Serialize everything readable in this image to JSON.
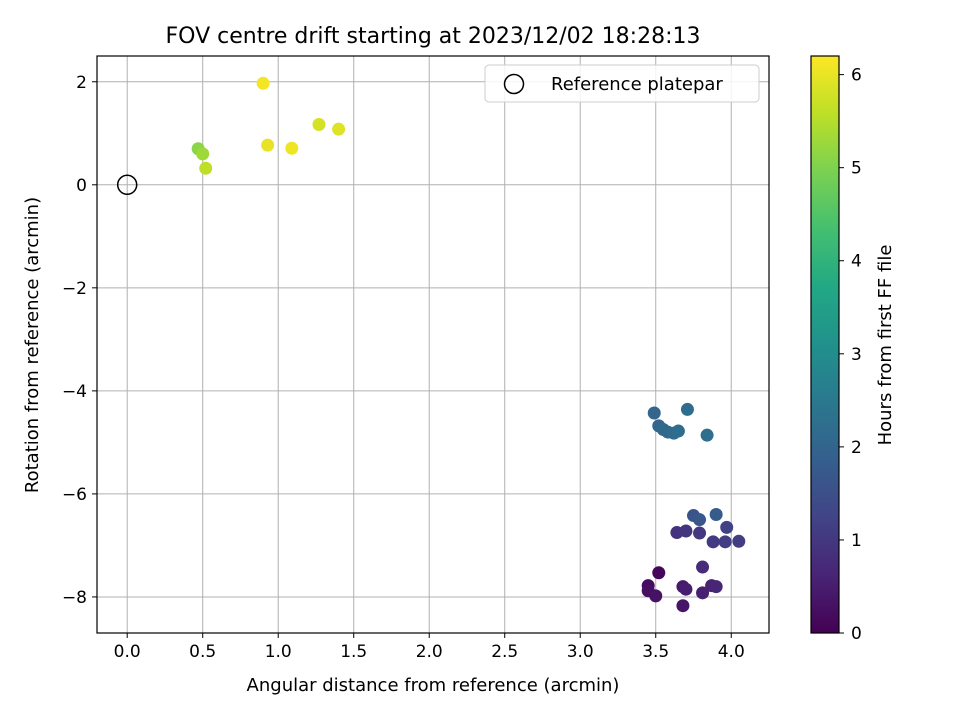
{
  "chart_data": {
    "type": "scatter",
    "title": "FOV centre drift starting at 2023/12/02 18:28:13",
    "xlabel": "Angular distance from reference (arcmin)",
    "ylabel": "Rotation from reference (arcmin)",
    "xlim": [
      -0.2,
      4.25
    ],
    "ylim": [
      -8.7,
      2.5
    ],
    "x_ticks": [
      0.0,
      0.5,
      1.0,
      1.5,
      2.0,
      2.5,
      3.0,
      3.5,
      4.0
    ],
    "x_tick_labels": [
      "0.0",
      "0.5",
      "1.0",
      "1.5",
      "2.0",
      "2.5",
      "3.0",
      "3.5",
      "4.0"
    ],
    "y_ticks": [
      2,
      0,
      -2,
      -4,
      -6,
      -8
    ],
    "y_tick_labels": [
      "2",
      "0",
      "−2",
      "−4",
      "−6",
      "−8"
    ],
    "grid": true,
    "legend": {
      "placement": "top-right",
      "entries": [
        "Reference platepar"
      ]
    },
    "reference_point": {
      "name": "Reference platepar",
      "x": 0.0,
      "y": 0.0,
      "marker": "open-circle"
    },
    "colorbar": {
      "label": "Hours from first FF file",
      "range": [
        0,
        6.2
      ],
      "ticks": [
        0,
        1,
        2,
        3,
        4,
        5,
        6
      ],
      "tick_labels": [
        "0",
        "1",
        "2",
        "3",
        "4",
        "5",
        "6"
      ],
      "colormap": "viridis"
    },
    "points": [
      {
        "x": 3.52,
        "y": -7.53,
        "c": 0.1
      },
      {
        "x": 3.45,
        "y": -7.78,
        "c": 0.2
      },
      {
        "x": 3.45,
        "y": -7.88,
        "c": 0.25
      },
      {
        "x": 3.5,
        "y": -7.98,
        "c": 0.3
      },
      {
        "x": 3.68,
        "y": -8.17,
        "c": 0.35
      },
      {
        "x": 3.68,
        "y": -7.8,
        "c": 0.45
      },
      {
        "x": 3.7,
        "y": -7.85,
        "c": 0.5
      },
      {
        "x": 3.81,
        "y": -7.92,
        "c": 0.55
      },
      {
        "x": 3.87,
        "y": -7.78,
        "c": 0.6
      },
      {
        "x": 3.9,
        "y": -7.8,
        "c": 0.65
      },
      {
        "x": 3.81,
        "y": -7.42,
        "c": 0.8
      },
      {
        "x": 3.64,
        "y": -6.75,
        "c": 0.9
      },
      {
        "x": 3.7,
        "y": -6.72,
        "c": 0.95
      },
      {
        "x": 3.79,
        "y": -6.76,
        "c": 1.0
      },
      {
        "x": 3.88,
        "y": -6.93,
        "c": 1.05
      },
      {
        "x": 3.96,
        "y": -6.93,
        "c": 1.1
      },
      {
        "x": 4.05,
        "y": -6.92,
        "c": 1.1
      },
      {
        "x": 3.97,
        "y": -6.65,
        "c": 1.2
      },
      {
        "x": 3.75,
        "y": -6.42,
        "c": 1.6
      },
      {
        "x": 3.79,
        "y": -6.5,
        "c": 1.7
      },
      {
        "x": 3.9,
        "y": -6.4,
        "c": 1.8
      },
      {
        "x": 3.49,
        "y": -4.43,
        "c": 2.0
      },
      {
        "x": 3.52,
        "y": -4.68,
        "c": 2.0
      },
      {
        "x": 3.55,
        "y": -4.75,
        "c": 2.1
      },
      {
        "x": 3.58,
        "y": -4.8,
        "c": 2.1
      },
      {
        "x": 3.62,
        "y": -4.82,
        "c": 2.15
      },
      {
        "x": 3.65,
        "y": -4.78,
        "c": 2.2
      },
      {
        "x": 3.71,
        "y": -4.36,
        "c": 2.2
      },
      {
        "x": 3.84,
        "y": -4.86,
        "c": 2.25
      },
      {
        "x": 0.47,
        "y": 0.7,
        "c": 5.1
      },
      {
        "x": 0.5,
        "y": 0.6,
        "c": 5.3
      },
      {
        "x": 0.52,
        "y": 0.32,
        "c": 5.6
      },
      {
        "x": 1.27,
        "y": 1.17,
        "c": 5.8
      },
      {
        "x": 1.4,
        "y": 1.08,
        "c": 5.9
      },
      {
        "x": 0.93,
        "y": 0.77,
        "c": 6.0
      },
      {
        "x": 1.09,
        "y": 0.71,
        "c": 6.05
      },
      {
        "x": 0.9,
        "y": 1.97,
        "c": 6.1
      }
    ]
  }
}
